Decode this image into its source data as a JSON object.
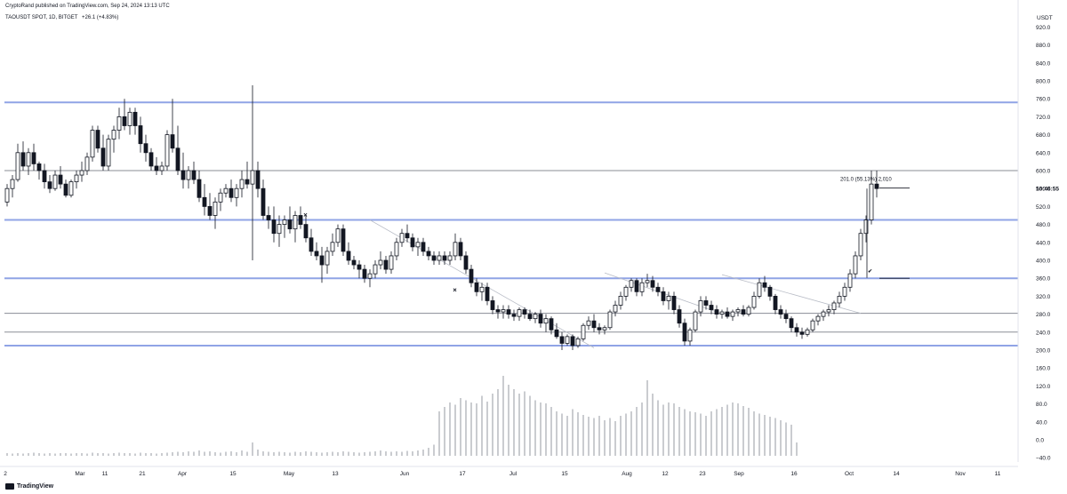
{
  "header": {
    "published": "CryptoRand published on TradingView.com, Sep 24, 2024 13:13 UTC",
    "symbol": "TAOUSDT SPOT, 1D, BITGET",
    "change": "+26.1 (+4.83%)"
  },
  "footer": {
    "brand": "TradingView"
  },
  "chart_data": {
    "type": "candlestick",
    "symbol": "TAOUSDT",
    "currency_label": "USDT",
    "last_price_label": "10:46:55",
    "y_ticks": [
      -40,
      0,
      40,
      80,
      120,
      160,
      200,
      240,
      280,
      320,
      360,
      400,
      440,
      480,
      520,
      560,
      600,
      640,
      680,
      720,
      760,
      800,
      840,
      880,
      920
    ],
    "y_tick_labels": [
      "−40.0",
      "0.0",
      "40.0",
      "80.0",
      "120.0",
      "160.0",
      "200.0",
      "240.0",
      "280.0",
      "320.0",
      "360.0",
      "400.0",
      "440.0",
      "480.0",
      "520.0",
      "560.0",
      "600.0",
      "640.0",
      "680.0",
      "720.0",
      "760.0",
      "800.0",
      "840.0",
      "880.0",
      "920.0"
    ],
    "x_ticks": [
      "2",
      "Mar",
      "11",
      "21",
      "Apr",
      "15",
      "May",
      "13",
      "Jun",
      "17",
      "Jul",
      "15",
      "Aug",
      "12",
      "23",
      "Sep",
      "16",
      "Oct",
      "14",
      "Nov",
      "11"
    ],
    "ohlc": [
      [
        530,
        570,
        520,
        560
      ],
      [
        560,
        590,
        540,
        580
      ],
      [
        580,
        660,
        575,
        640
      ],
      [
        640,
        665,
        600,
        610
      ],
      [
        610,
        650,
        590,
        640
      ],
      [
        640,
        660,
        600,
        615
      ],
      [
        615,
        620,
        580,
        600
      ],
      [
        600,
        615,
        560,
        575
      ],
      [
        575,
        590,
        550,
        560
      ],
      [
        560,
        600,
        555,
        590
      ],
      [
        590,
        610,
        560,
        570
      ],
      [
        570,
        580,
        540,
        545
      ],
      [
        545,
        580,
        540,
        575
      ],
      [
        575,
        600,
        560,
        590
      ],
      [
        590,
        620,
        575,
        600
      ],
      [
        600,
        640,
        590,
        630
      ],
      [
        630,
        700,
        620,
        690
      ],
      [
        690,
        700,
        640,
        650
      ],
      [
        650,
        680,
        600,
        610
      ],
      [
        610,
        680,
        600,
        670
      ],
      [
        670,
        700,
        640,
        690
      ],
      [
        690,
        740,
        670,
        720
      ],
      [
        720,
        760,
        690,
        700
      ],
      [
        700,
        740,
        680,
        730
      ],
      [
        730,
        740,
        680,
        700
      ],
      [
        700,
        720,
        640,
        660
      ],
      [
        660,
        680,
        620,
        640
      ],
      [
        640,
        650,
        600,
        610
      ],
      [
        610,
        630,
        590,
        600
      ],
      [
        600,
        620,
        590,
        610
      ],
      [
        610,
        690,
        600,
        680
      ],
      [
        680,
        760,
        640,
        650
      ],
      [
        650,
        700,
        590,
        600
      ],
      [
        600,
        640,
        560,
        580
      ],
      [
        580,
        610,
        560,
        600
      ],
      [
        600,
        620,
        570,
        580
      ],
      [
        580,
        600,
        530,
        540
      ],
      [
        540,
        570,
        500,
        520
      ],
      [
        520,
        550,
        490,
        500
      ],
      [
        500,
        540,
        470,
        530
      ],
      [
        530,
        560,
        510,
        550
      ],
      [
        550,
        570,
        540,
        560
      ],
      [
        560,
        580,
        530,
        540
      ],
      [
        540,
        570,
        520,
        560
      ],
      [
        560,
        600,
        540,
        580
      ],
      [
        580,
        620,
        560,
        570
      ],
      [
        570,
        790,
        400,
        600
      ],
      [
        600,
        620,
        540,
        560
      ],
      [
        560,
        580,
        490,
        500
      ],
      [
        500,
        520,
        470,
        490
      ],
      [
        490,
        520,
        440,
        460
      ],
      [
        460,
        500,
        430,
        480
      ],
      [
        480,
        500,
        450,
        490
      ],
      [
        490,
        520,
        460,
        470
      ],
      [
        470,
        510,
        440,
        500
      ],
      [
        500,
        520,
        470,
        480
      ],
      [
        480,
        500,
        440,
        450
      ],
      [
        450,
        470,
        410,
        420
      ],
      [
        420,
        440,
        400,
        410
      ],
      [
        410,
        430,
        350,
        390
      ],
      [
        390,
        430,
        370,
        420
      ],
      [
        420,
        460,
        410,
        440
      ],
      [
        440,
        480,
        430,
        470
      ],
      [
        470,
        480,
        410,
        420
      ],
      [
        420,
        440,
        390,
        400
      ],
      [
        400,
        410,
        380,
        390
      ],
      [
        390,
        400,
        360,
        380
      ],
      [
        380,
        390,
        350,
        360
      ],
      [
        360,
        380,
        340,
        370
      ],
      [
        370,
        400,
        360,
        390
      ],
      [
        390,
        420,
        380,
        400
      ],
      [
        400,
        410,
        370,
        380
      ],
      [
        380,
        420,
        370,
        410
      ],
      [
        410,
        450,
        400,
        440
      ],
      [
        440,
        470,
        430,
        460
      ],
      [
        460,
        480,
        440,
        450
      ],
      [
        450,
        460,
        420,
        430
      ],
      [
        430,
        450,
        410,
        440
      ],
      [
        440,
        450,
        410,
        420
      ],
      [
        420,
        430,
        400,
        410
      ],
      [
        410,
        420,
        390,
        400
      ],
      [
        400,
        420,
        390,
        410
      ],
      [
        410,
        420,
        390,
        400
      ],
      [
        400,
        420,
        390,
        410
      ],
      [
        410,
        460,
        400,
        440
      ],
      [
        440,
        450,
        400,
        410
      ],
      [
        410,
        420,
        370,
        380
      ],
      [
        380,
        390,
        340,
        350
      ],
      [
        350,
        360,
        320,
        330
      ],
      [
        330,
        350,
        310,
        340
      ],
      [
        340,
        350,
        300,
        310
      ],
      [
        310,
        320,
        280,
        290
      ],
      [
        290,
        300,
        270,
        285
      ],
      [
        285,
        300,
        270,
        290
      ],
      [
        290,
        300,
        270,
        280
      ],
      [
        280,
        290,
        265,
        275
      ],
      [
        275,
        295,
        265,
        290
      ],
      [
        290,
        295,
        270,
        280
      ],
      [
        280,
        290,
        265,
        270
      ],
      [
        270,
        285,
        260,
        280
      ],
      [
        280,
        290,
        250,
        260
      ],
      [
        260,
        280,
        240,
        270
      ],
      [
        270,
        275,
        235,
        245
      ],
      [
        245,
        260,
        225,
        230
      ],
      [
        230,
        240,
        200,
        215
      ],
      [
        215,
        235,
        210,
        230
      ],
      [
        230,
        235,
        200,
        210
      ],
      [
        210,
        230,
        205,
        225
      ],
      [
        225,
        260,
        220,
        255
      ],
      [
        255,
        275,
        245,
        265
      ],
      [
        265,
        280,
        240,
        250
      ],
      [
        250,
        260,
        235,
        245
      ],
      [
        245,
        255,
        235,
        250
      ],
      [
        250,
        290,
        245,
        285
      ],
      [
        285,
        310,
        275,
        300
      ],
      [
        300,
        330,
        290,
        320
      ],
      [
        320,
        345,
        310,
        340
      ],
      [
        340,
        360,
        330,
        355
      ],
      [
        355,
        360,
        320,
        330
      ],
      [
        330,
        360,
        320,
        350
      ],
      [
        350,
        370,
        340,
        355
      ],
      [
        355,
        365,
        330,
        340
      ],
      [
        340,
        350,
        320,
        330
      ],
      [
        330,
        340,
        300,
        310
      ],
      [
        310,
        330,
        290,
        320
      ],
      [
        320,
        330,
        280,
        290
      ],
      [
        290,
        300,
        250,
        260
      ],
      [
        260,
        270,
        210,
        220
      ],
      [
        220,
        250,
        210,
        245
      ],
      [
        245,
        290,
        240,
        285
      ],
      [
        285,
        320,
        275,
        310
      ],
      [
        310,
        320,
        290,
        300
      ],
      [
        300,
        310,
        280,
        290
      ],
      [
        290,
        300,
        270,
        280
      ],
      [
        280,
        290,
        270,
        285
      ],
      [
        285,
        295,
        270,
        275
      ],
      [
        275,
        290,
        265,
        285
      ],
      [
        285,
        295,
        275,
        290
      ],
      [
        290,
        300,
        275,
        280
      ],
      [
        280,
        300,
        275,
        295
      ],
      [
        295,
        330,
        290,
        320
      ],
      [
        320,
        360,
        315,
        350
      ],
      [
        350,
        365,
        330,
        340
      ],
      [
        340,
        345,
        310,
        320
      ],
      [
        320,
        325,
        280,
        290
      ],
      [
        290,
        300,
        270,
        280
      ],
      [
        280,
        290,
        260,
        270
      ],
      [
        270,
        275,
        240,
        250
      ],
      [
        250,
        260,
        230,
        240
      ],
      [
        240,
        250,
        225,
        235
      ],
      [
        235,
        250,
        230,
        245
      ],
      [
        245,
        270,
        240,
        265
      ],
      [
        265,
        280,
        255,
        275
      ],
      [
        275,
        290,
        265,
        285
      ],
      [
        285,
        300,
        275,
        290
      ],
      [
        290,
        310,
        280,
        305
      ],
      [
        305,
        330,
        295,
        320
      ],
      [
        320,
        350,
        310,
        340
      ],
      [
        340,
        380,
        330,
        370
      ],
      [
        370,
        420,
        360,
        410
      ],
      [
        410,
        470,
        400,
        460
      ],
      [
        460,
        500,
        440,
        490
      ],
      [
        490,
        600,
        480,
        570
      ],
      [
        570,
        600,
        540,
        560
      ]
    ],
    "volume": [
      6,
      5,
      6,
      5,
      6,
      7,
      6,
      5,
      6,
      5,
      6,
      6,
      5,
      6,
      6,
      5,
      7,
      6,
      6,
      5,
      6,
      7,
      6,
      6,
      5,
      7,
      6,
      6,
      5,
      6,
      7,
      8,
      9,
      8,
      10,
      9,
      12,
      9,
      10,
      8,
      7,
      9,
      10,
      8,
      12,
      9,
      30,
      14,
      10,
      9,
      8,
      9,
      8,
      7,
      9,
      8,
      10,
      9,
      8,
      7,
      8,
      9,
      8,
      10,
      9,
      8,
      7,
      8,
      9,
      10,
      12,
      10,
      9,
      10,
      9,
      11,
      10,
      12,
      14,
      18,
      25,
      100,
      110,
      120,
      115,
      130,
      125,
      120,
      118,
      135,
      122,
      140,
      150,
      180,
      160,
      150,
      140,
      145,
      135,
      125,
      120,
      118,
      110,
      100,
      95,
      90,
      105,
      98,
      92,
      88,
      85,
      90,
      80,
      85,
      78,
      90,
      95,
      100,
      110,
      120,
      170,
      140,
      125,
      115,
      120,
      118,
      110,
      105,
      100,
      98,
      95,
      90,
      100,
      105,
      110,
      115,
      120,
      118,
      112,
      108,
      100,
      95,
      92,
      88,
      85,
      80,
      75,
      70,
      30
    ]
  },
  "drawings": {
    "measure_label": "201.0 (55.13%) 2,010"
  }
}
